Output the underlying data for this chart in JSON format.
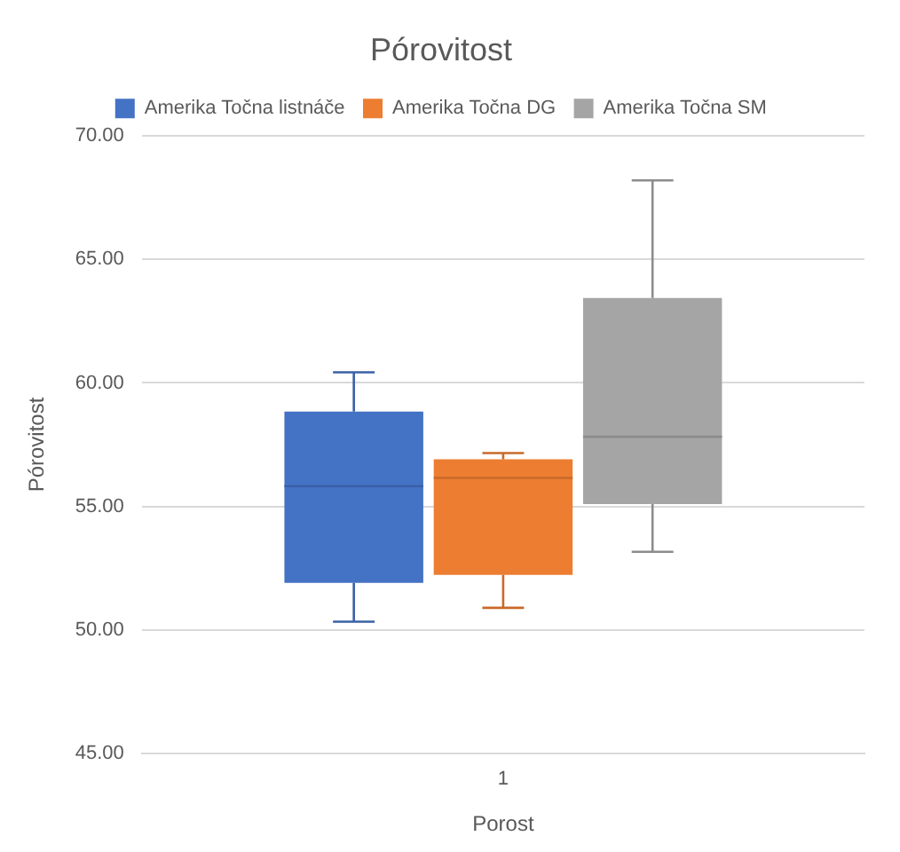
{
  "chart_data": {
    "type": "box",
    "title": "Pórovitost",
    "xlabel": "Porost",
    "ylabel": "Pórovitost",
    "categories": [
      "1"
    ],
    "series": [
      {
        "name": "Amerika Točna listnáče",
        "color": "#4472c4",
        "boxes": [
          {
            "low": 50.33,
            "q1": 51.9,
            "median": 55.82,
            "q3": 58.84,
            "high": 60.43
          }
        ]
      },
      {
        "name": "Amerika Točna DG",
        "color": "#ed7d31",
        "boxes": [
          {
            "low": 50.89,
            "q1": 52.23,
            "median": 56.15,
            "q3": 56.91,
            "high": 57.16
          }
        ]
      },
      {
        "name": "Amerika Točna SM",
        "color": "#a5a5a5",
        "boxes": [
          {
            "low": 53.16,
            "q1": 55.09,
            "median": 57.82,
            "q3": 63.44,
            "high": 68.2
          }
        ]
      }
    ],
    "ylim": [
      45,
      70
    ],
    "yticks": [
      {
        "value": 45,
        "label": "45.00"
      },
      {
        "value": 50,
        "label": "50.00"
      },
      {
        "value": 55,
        "label": "55.00"
      },
      {
        "value": 60,
        "label": "60.00"
      },
      {
        "value": 65,
        "label": "65.00"
      },
      {
        "value": 70,
        "label": "70.00"
      }
    ],
    "grid": "y",
    "legend": "top"
  }
}
